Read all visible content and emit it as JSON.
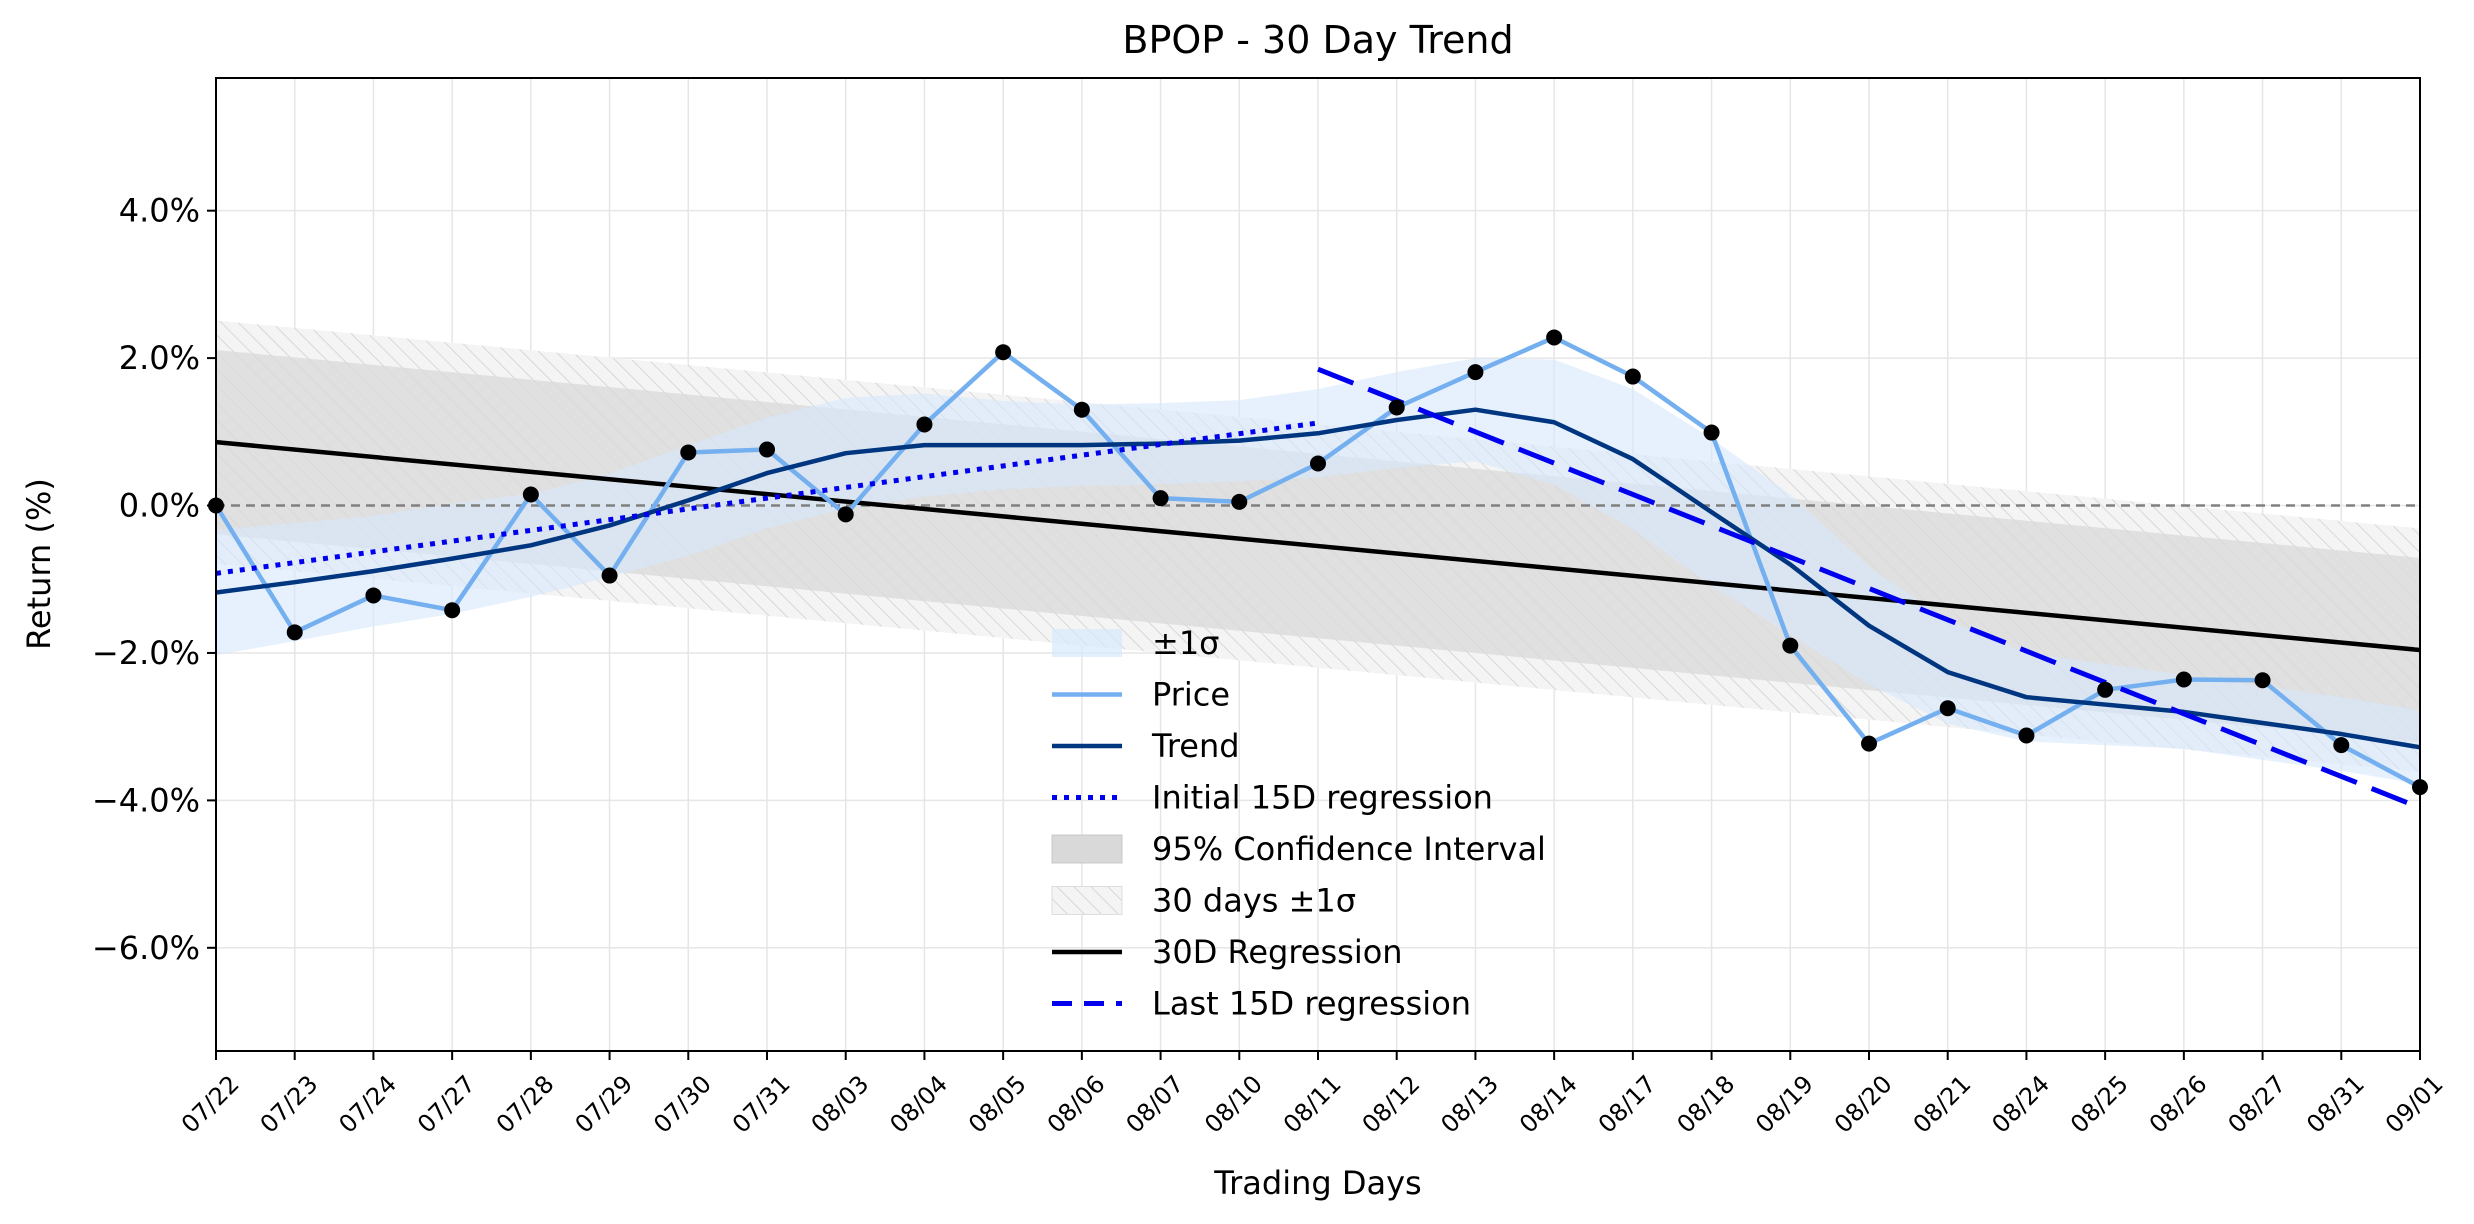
{
  "chart_data": {
    "type": "line",
    "title": "BPOP - 30 Day Trend",
    "xlabel": "Trading Days",
    "ylabel": "Return (%)",
    "ylim": [
      -7.4,
      5.8
    ],
    "yticks": [
      4.0,
      2.0,
      0.0,
      -2.0,
      -4.0,
      -6.0
    ],
    "ytick_labels": [
      "4.0%",
      "2.0%",
      "0.0%",
      "−2.0%",
      "−4.0%",
      "−6.0%"
    ],
    "grid": true,
    "legend_position": "lower-center",
    "categories": [
      "07/22",
      "07/23",
      "07/24",
      "07/27",
      "07/28",
      "07/29",
      "07/30",
      "07/31",
      "08/03",
      "08/04",
      "08/05",
      "08/06",
      "08/07",
      "08/10",
      "08/11",
      "08/12",
      "08/13",
      "08/14",
      "08/17",
      "08/18",
      "08/19",
      "08/20",
      "08/21",
      "08/24",
      "08/25",
      "08/26",
      "08/27",
      "08/31",
      "09/01"
    ],
    "series": [
      {
        "name": "Price",
        "color": "#74aff0",
        "values": [
          0.0,
          -1.72,
          -1.22,
          -1.42,
          0.15,
          -0.95,
          0.72,
          0.76,
          -0.12,
          1.1,
          2.08,
          1.3,
          0.1,
          0.05,
          0.57,
          1.33,
          1.81,
          2.28,
          1.75,
          0.99,
          -1.9,
          -3.23,
          -2.75,
          -3.12,
          -2.5,
          -2.36,
          -2.37,
          -3.25,
          -3.82
        ]
      },
      {
        "name": "Trend",
        "color": "#003580",
        "values": [
          -1.18,
          -1.04,
          -0.89,
          -0.72,
          -0.54,
          -0.27,
          0.07,
          0.44,
          0.71,
          0.82,
          0.82,
          0.82,
          0.84,
          0.88,
          0.98,
          1.16,
          1.3,
          1.13,
          0.63,
          -0.09,
          -0.8,
          -1.63,
          -2.26,
          -2.6,
          -2.7,
          -2.8,
          -2.95,
          -3.1,
          -3.28
        ]
      },
      {
        "name": "Initial 15D regression",
        "color": "#0000ee",
        "style": "dotted",
        "x_range": [
          "07/22",
          "08/11"
        ],
        "y_range": [
          -0.92,
          1.12
        ]
      },
      {
        "name": "30D Regression",
        "color": "#000000",
        "style": "solid",
        "x_range": [
          "07/22",
          "09/01"
        ],
        "y_range": [
          0.86,
          -1.96
        ]
      },
      {
        "name": "Last 15D regression",
        "color": "#0000ee",
        "style": "dashed",
        "x_range": [
          "08/11",
          "09/01"
        ],
        "y_range": [
          1.85,
          -4.1
        ]
      }
    ],
    "bands": [
      {
        "name": "±1σ",
        "color": "#d6e8fb",
        "around": "Trend",
        "width": [
          0.85,
          0.8,
          0.75,
          0.75,
          0.7,
          0.7,
          0.75,
          0.75,
          0.75,
          0.7,
          0.6,
          0.55,
          0.55,
          0.55,
          0.6,
          0.65,
          0.7,
          0.85,
          0.95,
          1.0,
          0.95,
          0.8,
          0.7,
          0.6,
          0.55,
          0.5,
          0.5,
          0.5,
          0.5
        ]
      },
      {
        "name": "95% Confidence Interval",
        "color": "#d9d9d9",
        "around": "30D Regression",
        "half_width_start": 1.25,
        "half_width_end": 1.25
      },
      {
        "name": "30 days ±1σ",
        "color": "#f0f0f0",
        "around": "30D Regression",
        "half_width_start": 1.65,
        "half_width_end": 1.65
      }
    ],
    "reference_line": {
      "y": 0.0,
      "style": "dashed",
      "color": "#808080"
    },
    "legend": [
      "±1σ",
      "Price",
      "Trend",
      "Initial 15D regression",
      "95% Confidence Interval",
      "30 days ±1σ",
      "30D Regression",
      "Last 15D regression"
    ]
  }
}
